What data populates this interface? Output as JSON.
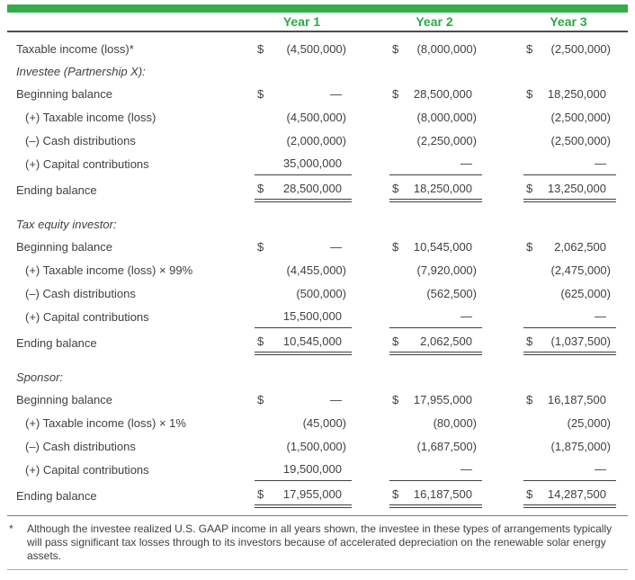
{
  "colors": {
    "accent_green": "#35ad4b",
    "header_text_green": "#2fa64a",
    "body_text": "#414042",
    "rule_dark": "#4d4d4f",
    "rule_light": "#a7a9ac"
  },
  "header": {
    "columns": [
      "Year 1",
      "Year 2",
      "Year 3"
    ]
  },
  "table": {
    "currency_symbol": "$",
    "rows": [
      {
        "type": "data",
        "label": "Taxable income (loss)*",
        "dollar": true,
        "values": [
          "(4,500,000)",
          "(8,000,000)",
          "(2,500,000)"
        ]
      },
      {
        "type": "section",
        "label": "Investee (Partnership X):"
      },
      {
        "type": "data",
        "label": "Beginning balance",
        "dollar": true,
        "values": [
          "—",
          "28,500,000",
          "18,250,000"
        ]
      },
      {
        "type": "data",
        "label": "(+) Taxable income (loss)",
        "indent": true,
        "values": [
          "(4,500,000)",
          "(8,000,000)",
          "(2,500,000)"
        ]
      },
      {
        "type": "data",
        "label": "(–) Cash distributions",
        "indent": true,
        "values": [
          "(2,000,000)",
          "(2,250,000)",
          "(2,500,000)"
        ]
      },
      {
        "type": "data",
        "label": "(+) Capital contributions",
        "indent": true,
        "underline": true,
        "values": [
          "35,000,000",
          "—",
          "—"
        ]
      },
      {
        "type": "data",
        "label": "Ending balance",
        "dollar": true,
        "double_underline": true,
        "values": [
          "28,500,000",
          "18,250,000",
          "13,250,000"
        ]
      },
      {
        "type": "section",
        "label": "Tax equity investor:"
      },
      {
        "type": "data",
        "label": "Beginning balance",
        "dollar": true,
        "values": [
          "—",
          "10,545,000",
          "2,062,500"
        ]
      },
      {
        "type": "data",
        "label": "(+) Taxable income (loss) × 99%",
        "indent": true,
        "values": [
          "(4,455,000)",
          "(7,920,000)",
          "(2,475,000)"
        ]
      },
      {
        "type": "data",
        "label": "(–) Cash distributions",
        "indent": true,
        "values": [
          "(500,000)",
          "(562,500)",
          "(625,000)"
        ]
      },
      {
        "type": "data",
        "label": "(+) Capital contributions",
        "indent": true,
        "underline": true,
        "values": [
          "15,500,000",
          "—",
          "—"
        ]
      },
      {
        "type": "data",
        "label": "Ending balance",
        "dollar": true,
        "double_underline": true,
        "values": [
          "10,545,000",
          "2,062,500",
          "(1,037,500)"
        ]
      },
      {
        "type": "section",
        "label": "Sponsor:"
      },
      {
        "type": "data",
        "label": "Beginning balance",
        "dollar": true,
        "values": [
          "—",
          "17,955,000",
          "16,187,500"
        ]
      },
      {
        "type": "data",
        "label": "(+) Taxable income (loss) × 1%",
        "indent": true,
        "values": [
          "(45,000)",
          "(80,000)",
          "(25,000)"
        ]
      },
      {
        "type": "data",
        "label": "(–) Cash distributions",
        "indent": true,
        "values": [
          "(1,500,000)",
          "(1,687,500)",
          "(1,875,000)"
        ]
      },
      {
        "type": "data",
        "label": "(+) Capital contributions",
        "indent": true,
        "underline": true,
        "values": [
          "19,500,000",
          "—",
          "—"
        ]
      },
      {
        "type": "data",
        "label": "Ending balance",
        "dollar": true,
        "double_underline": true,
        "values": [
          "17,955,000",
          "16,187,500",
          "14,287,500"
        ]
      }
    ]
  },
  "footnote": {
    "marker": "*",
    "text": "Although the investee realized U.S. GAAP income in all years shown, the investee in these types of arrangements typically will pass significant tax losses through to its investors because of accelerated depreciation on the renewable solar energy assets."
  }
}
